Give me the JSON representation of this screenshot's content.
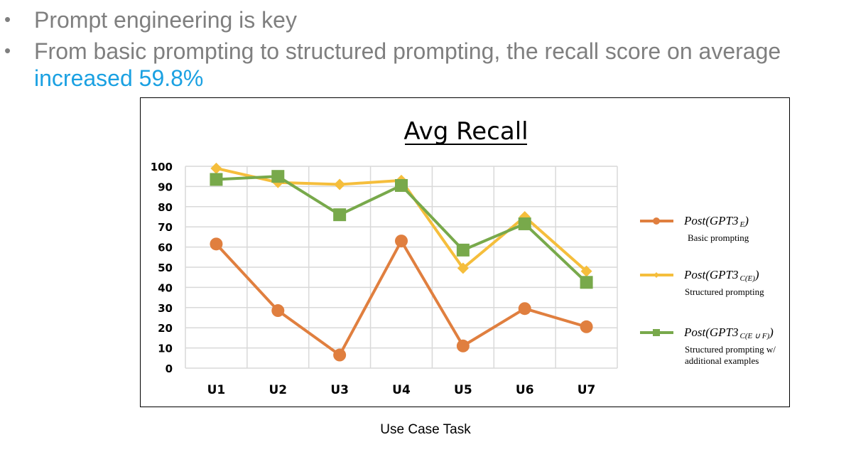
{
  "slide": {
    "bullets": [
      {
        "icon": "bullet-dot-icon",
        "text": "Prompt engineering is key"
      },
      {
        "icon": "bullet-dot-icon",
        "text": "From basic prompting to structured prompting, the recall score on average"
      }
    ],
    "highlight_text": "increased 59.8%",
    "colors": {
      "body_text": "#7f7f7f",
      "highlight": "#1ba1e2"
    }
  },
  "chart_data": {
    "type": "line",
    "title": "Avg Recall",
    "xlabel": "Use Case Task",
    "ylabel": "",
    "categories": [
      "U1",
      "U2",
      "U3",
      "U4",
      "U5",
      "U6",
      "U7"
    ],
    "ylim": [
      0,
      100
    ],
    "yticks": [
      0,
      10,
      20,
      30,
      40,
      50,
      60,
      70,
      80,
      90,
      100
    ],
    "grid": true,
    "legend_position": "right",
    "series": [
      {
        "name": "Post(GPT3_E)",
        "label_main": "Post(GPT3",
        "label_sub": "E",
        "description": [
          "Basic prompting"
        ],
        "marker": "circle",
        "color": "#e07f3f",
        "values": [
          61.5,
          28.5,
          6.5,
          63,
          11,
          29.5,
          20.5
        ]
      },
      {
        "name": "Post(GPT3_C(E))",
        "label_main": "Post(GPT3",
        "label_sub": "C(E)",
        "description": [
          "Structured prompting"
        ],
        "marker": "diamond",
        "color": "#f5be3c",
        "values": [
          99,
          92,
          91,
          93,
          49.5,
          75,
          48
        ]
      },
      {
        "name": "Post(GPT3_C(E ∪ F))",
        "label_main": "Post(GPT3",
        "label_sub": "C(E ∪ F)",
        "description": [
          "Structured prompting w/",
          "additional examples"
        ],
        "marker": "square",
        "color": "#78a94b",
        "values": [
          93.5,
          95,
          76,
          90.5,
          58.5,
          71.5,
          42.5
        ]
      }
    ]
  }
}
